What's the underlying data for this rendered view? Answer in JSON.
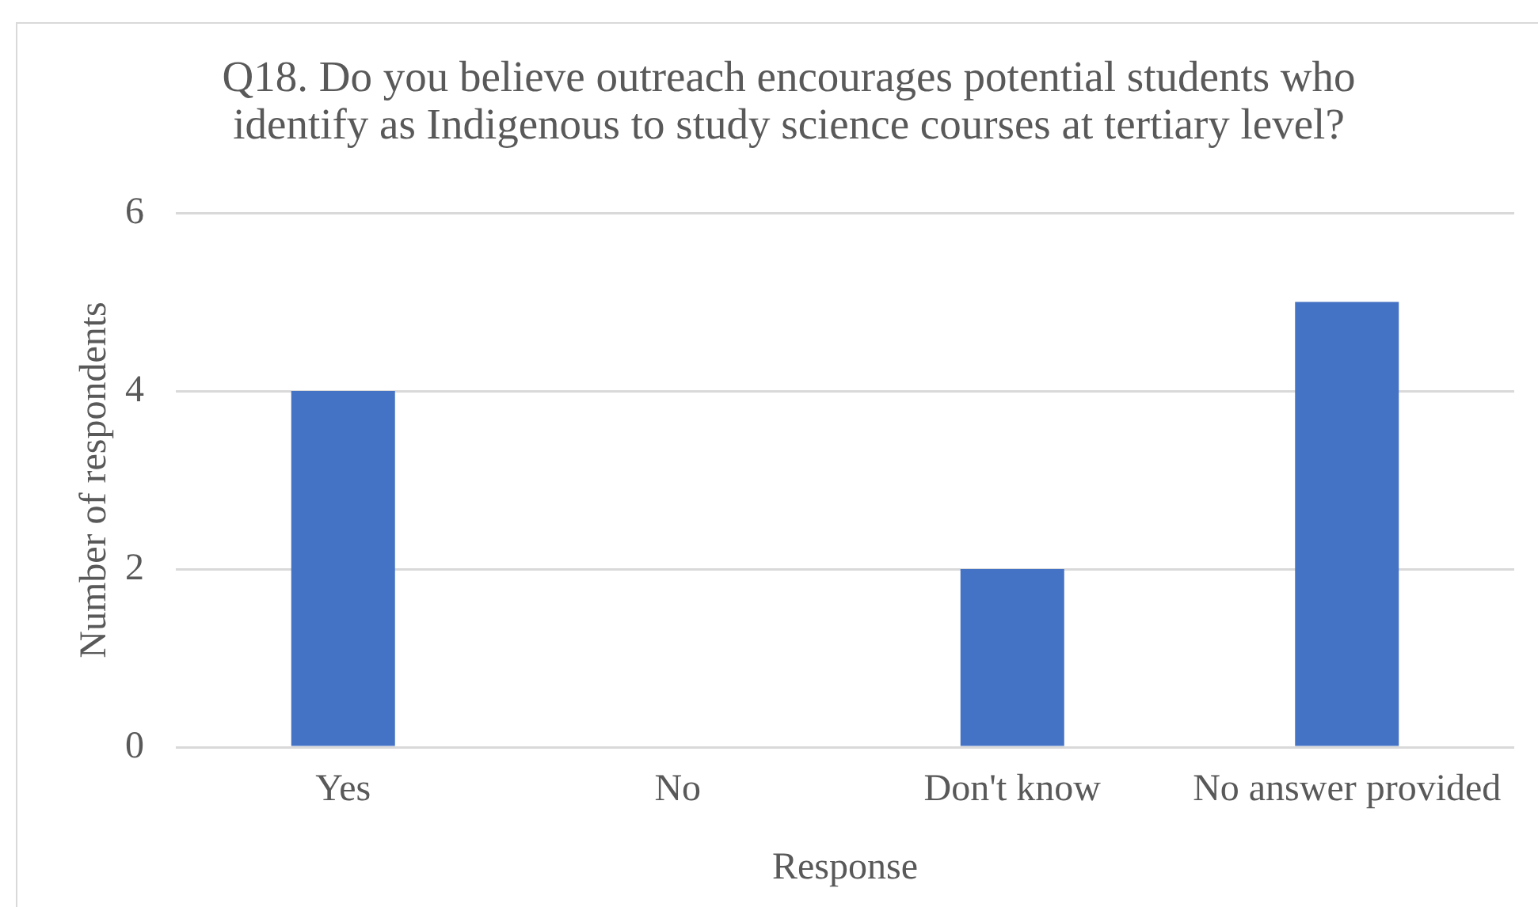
{
  "chart_data": {
    "type": "bar",
    "title": "Q18. Do you believe outreach encourages potential students who identify as Indigenous to study science courses at tertiary level?",
    "xlabel": "Response",
    "ylabel": "Number of respondents",
    "categories": [
      "Yes",
      "No",
      "Don't know",
      "No answer provided"
    ],
    "values": [
      4,
      0,
      2,
      5
    ],
    "color": "#4472c4",
    "ylim": [
      0,
      6
    ],
    "yticks": [
      0,
      2,
      4,
      6
    ],
    "grid": "y"
  }
}
